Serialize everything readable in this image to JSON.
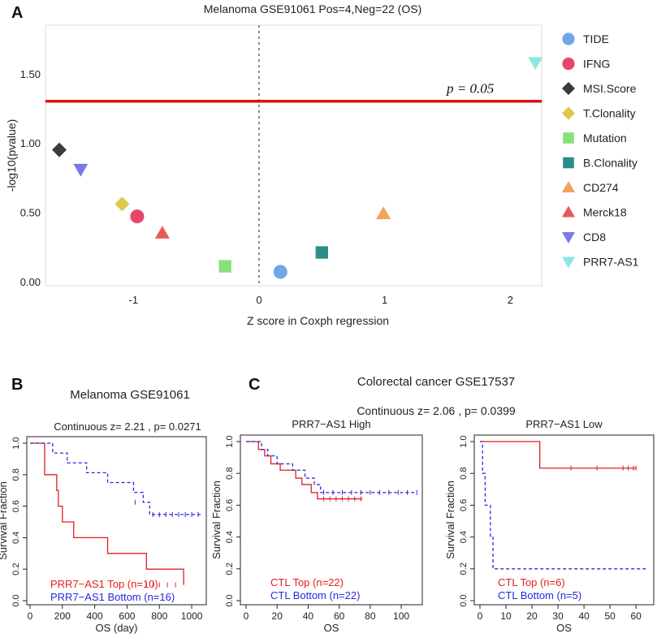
{
  "panel_letters": {
    "a": "A",
    "b": "B",
    "c": "C"
  },
  "chart_data": [
    {
      "id": "A",
      "type": "scatter",
      "title": "Melanoma GSE91061    Pos=4,Neg=22  (OS)",
      "xlabel": "Z score in Coxph regression",
      "ylabel": "-log10(pvalue)",
      "xlim": [
        -1.7,
        2.25
      ],
      "ylim": [
        -0.03,
        1.85
      ],
      "xticks": [
        -1,
        0,
        1,
        2
      ],
      "xtick_labels": [
        "-1",
        "0",
        "1",
        "2"
      ],
      "yticks": [
        0.0,
        0.5,
        1.0,
        1.5
      ],
      "ytick_labels": [
        "0.00",
        "0.50",
        "1.00",
        "1.50"
      ],
      "threshold_y": 1.30103,
      "threshold_label": "p = 0.05",
      "vline_x": 0,
      "points": [
        {
          "name": "TIDE",
          "x": 0.17,
          "y": 0.07,
          "color": "#6fa8e6",
          "shape": "circle"
        },
        {
          "name": "IFNG",
          "x": -0.97,
          "y": 0.47,
          "color": "#e8456a",
          "shape": "circle"
        },
        {
          "name": "MSI.Score",
          "x": -1.59,
          "y": 0.95,
          "color": "#3a3a40",
          "shape": "diamond"
        },
        {
          "name": "T.Clonality",
          "x": -1.09,
          "y": 0.56,
          "color": "#dcc94a",
          "shape": "diamond"
        },
        {
          "name": "Mutation",
          "x": -0.27,
          "y": 0.11,
          "color": "#88e07a",
          "shape": "square"
        },
        {
          "name": "B.Clonality",
          "x": 0.5,
          "y": 0.21,
          "color": "#2a8f86",
          "shape": "square"
        },
        {
          "name": "CD274",
          "x": 0.99,
          "y": 0.49,
          "color": "#f0a35a",
          "shape": "triangle-up"
        },
        {
          "name": "Merck18",
          "x": -0.77,
          "y": 0.35,
          "color": "#e85a5a",
          "shape": "triangle-up"
        },
        {
          "name": "CD8",
          "x": -1.42,
          "y": 0.81,
          "color": "#7b79e6",
          "shape": "triangle-down"
        },
        {
          "name": "PRR7-AS1",
          "x": 2.2,
          "y": 1.58,
          "color": "#8ee6e2",
          "shape": "triangle-down"
        }
      ]
    },
    {
      "id": "B",
      "type": "line",
      "title": "Melanoma GSE91061",
      "subtitle": "Continuous z= 2.21 , p= 0.0271",
      "xlabel": "OS (day)",
      "ylabel": "Survival Fraction",
      "xlim": [
        0,
        1080
      ],
      "ylim": [
        0,
        1.0
      ],
      "xticks": [
        0,
        200,
        400,
        600,
        800,
        1000
      ],
      "xtick_labels": [
        "0",
        "200",
        "400",
        "600",
        "800",
        "1000"
      ],
      "yticks": [
        0.0,
        0.2,
        0.4,
        0.6,
        0.8,
        1.0
      ],
      "ytick_labels": [
        "0.0",
        "0.2",
        "0.4",
        "0.6",
        "0.8",
        "1.0"
      ],
      "legend": [
        "PRR7−AS1 Top (n=10)",
        "PRR7−AS1 Bottom (n=16)"
      ],
      "series": [
        {
          "name": "PRR7−AS1 Top (n=10)",
          "color": "#e02020",
          "dash": false,
          "x": [
            0,
            70,
            90,
            150,
            165,
            175,
            200,
            270,
            480,
            720,
            950
          ],
          "y": [
            1.0,
            1.0,
            0.8,
            0.8,
            0.7,
            0.6,
            0.5,
            0.4,
            0.3,
            0.2,
            0.1
          ],
          "censor": [
            [
              720,
              0.1
            ],
            [
              760,
              0.1
            ],
            [
              800,
              0.1
            ],
            [
              850,
              0.1
            ],
            [
              900,
              0.1
            ]
          ]
        },
        {
          "name": "PRR7−AS1 Bottom (n=16)",
          "color": "#2828e0",
          "dash": true,
          "x": [
            0,
            90,
            140,
            230,
            350,
            480,
            640,
            700,
            740,
            1070
          ],
          "y": [
            1.0,
            1.0,
            0.9375,
            0.875,
            0.8125,
            0.75,
            0.6875,
            0.625,
            0.5469,
            0.5469
          ],
          "censor": [
            [
              650,
              0.625
            ],
            [
              760,
              0.5469
            ],
            [
              800,
              0.5469
            ],
            [
              840,
              0.5469
            ],
            [
              880,
              0.5469
            ],
            [
              920,
              0.5469
            ],
            [
              960,
              0.5469
            ],
            [
              1000,
              0.5469
            ],
            [
              1040,
              0.5469
            ]
          ]
        }
      ]
    },
    {
      "id": "C",
      "type": "line",
      "group_title": "Colorectal cancer GSE17537",
      "group_subtitle": "Continuous z= 2.06 , p= 0.0399",
      "panels": [
        {
          "title": "PRR7−AS1 High",
          "xlabel": "OS",
          "ylabel": "Survival Fraction",
          "xlim": [
            0,
            112
          ],
          "ylim": [
            0,
            1.0
          ],
          "xticks": [
            0,
            20,
            40,
            60,
            80,
            100
          ],
          "xtick_labels": [
            "0",
            "20",
            "40",
            "60",
            "80",
            "100"
          ],
          "yticks": [
            0.0,
            0.2,
            0.4,
            0.6,
            0.8,
            1.0
          ],
          "ytick_labels": [
            "0.0",
            "0.2",
            "0.4",
            "0.6",
            "0.8",
            "1.0"
          ],
          "legend": [
            "CTL Top (n=22)",
            "CTL Bottom (n=22)"
          ],
          "series": [
            {
              "name": "CTL Top (n=22)",
              "color": "#e02020",
              "dash": false,
              "x": [
                0,
                5,
                8,
                12,
                16,
                22,
                32,
                36,
                42,
                46,
                50,
                75
              ],
              "y": [
                1.0,
                1.0,
                0.95,
                0.91,
                0.86,
                0.82,
                0.77,
                0.73,
                0.68,
                0.64,
                0.64,
                0.64
              ],
              "censor": [
                [
                  50,
                  0.64
                ],
                [
                  54,
                  0.64
                ],
                [
                  58,
                  0.64
                ],
                [
                  62,
                  0.64
                ],
                [
                  66,
                  0.64
                ],
                [
                  70,
                  0.64
                ],
                [
                  74,
                  0.64
                ]
              ]
            },
            {
              "name": "CTL Bottom (n=22)",
              "color": "#2828e0",
              "dash": true,
              "x": [
                0,
                8,
                10,
                14,
                20,
                30,
                38,
                44,
                48,
                110
              ],
              "y": [
                1.0,
                1.0,
                0.95,
                0.91,
                0.86,
                0.82,
                0.77,
                0.73,
                0.68,
                0.68
              ],
              "censor": [
                [
                  50,
                  0.68
                ],
                [
                  56,
                  0.68
                ],
                [
                  62,
                  0.68
                ],
                [
                  68,
                  0.68
                ],
                [
                  74,
                  0.68
                ],
                [
                  80,
                  0.68
                ],
                [
                  86,
                  0.68
                ],
                [
                  92,
                  0.68
                ],
                [
                  98,
                  0.68
                ],
                [
                  104,
                  0.68
                ],
                [
                  110,
                  0.68
                ]
              ]
            }
          ]
        },
        {
          "title": "PRR7−AS1 Low",
          "xlabel": "OS",
          "ylabel": "Survival Fraction",
          "xlim": [
            0,
            64
          ],
          "ylim": [
            0,
            1.0
          ],
          "xticks": [
            0,
            10,
            20,
            30,
            40,
            50,
            60
          ],
          "xtick_labels": [
            "0",
            "10",
            "20",
            "30",
            "40",
            "50",
            "60"
          ],
          "yticks": [
            0.0,
            0.2,
            0.4,
            0.6,
            0.8,
            1.0
          ],
          "ytick_labels": [
            "0.0",
            "0.2",
            "0.4",
            "0.6",
            "0.8",
            "1.0"
          ],
          "legend": [
            "CTL Top (n=6)",
            "CTL Bottom (n=5)"
          ],
          "series": [
            {
              "name": "CTL Top (n=6)",
              "color": "#e02020",
              "dash": false,
              "x": [
                0,
                23,
                60
              ],
              "y": [
                1.0,
                0.833,
                0.833
              ],
              "censor": [
                [
                  35,
                  0.833
                ],
                [
                  45,
                  0.833
                ],
                [
                  55,
                  0.833
                ],
                [
                  57,
                  0.833
                ],
                [
                  59,
                  0.833
                ],
                [
                  60,
                  0.833
                ]
              ]
            },
            {
              "name": "CTL Bottom (n=5)",
              "color": "#2828e0",
              "dash": true,
              "x": [
                0,
                1,
                2,
                4,
                5,
                64
              ],
              "y": [
                1.0,
                0.8,
                0.6,
                0.4,
                0.2,
                0.2
              ],
              "censor": []
            }
          ]
        }
      ]
    }
  ]
}
